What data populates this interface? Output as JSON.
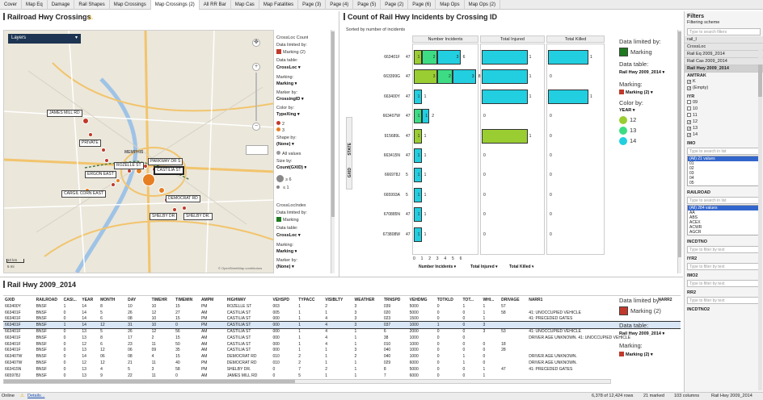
{
  "tabs": [
    "Cover",
    "Map Eq",
    "Damage",
    "Rail Shapes",
    "Map Crossings",
    "Map Crossings (2)",
    "All RR Bar",
    "Map Cas",
    "Map Fatalities",
    "Page (3)",
    "Page (4)",
    "Page (5)",
    "Page (2)",
    "Page (6)",
    "Map Ops",
    "Map Ops (2)"
  ],
  "active_tab": 5,
  "map_panel": {
    "title": "Railroad Hwy Crossings",
    "layers_label": "Layers",
    "scale_km": "10 km",
    "scale_mi": "5 mi",
    "credit": "© OpenStreetMap contributors",
    "labels": [
      "JAMES MILL RD",
      "PRIVATE",
      "ROZELLE ST",
      "PARKWAY DR S",
      "CASTILIA ST",
      "ERGON EAST",
      "CARGIL CORN EAST",
      "DEMOCRAT RD",
      "SHELBY DR",
      "SHELBY DR."
    ],
    "city": "MEMPHIS",
    "legend": {
      "section_title": "CrossLoc Count",
      "data_limited_label": "Data limited by:",
      "data_limited_value": "Marking (2)",
      "data_table_label": "Data table:",
      "data_table_value": "CrossLoc",
      "marking_label": "Marking:",
      "marking_value": "Marking",
      "marker_label": "Marker by:",
      "marker_value": "CrossingID",
      "color_label": "Color by:",
      "color_value": "TypeXing",
      "color_items": [
        "2",
        "3"
      ],
      "shape_label": "Shape by:",
      "shape_value": "(None)",
      "shape_item": "All values",
      "size_label": "Size by:",
      "size_value": "Count(GXID)",
      "size_items": [
        "≥ 6",
        "≤ 1"
      ],
      "section2_title": "CrossLocIndex",
      "data_limited_label2": "Data limited by:",
      "data_limited_value2": "Marking",
      "data_table_label2": "Data table:",
      "data_table_value2": "CrossLoc",
      "marking_label2": "Marking:",
      "marking_value2": "Marking",
      "marker_label2": "Marker by:",
      "marker_value2": "(None)"
    }
  },
  "chart_panel": {
    "title": "Count of Rail Hwy Incidents by Crossing ID",
    "subtitle": "Sorted by number of incidents",
    "y_axis_label": "GXID",
    "state_label": "STATE",
    "legend": {
      "data_limited_label": "Data limited by:",
      "data_limited_value": "Marking",
      "data_table_label": "Data table:",
      "data_table_value": "Rail Hwy 2009_2014",
      "marking_label": "Marking:",
      "marking_value": "Marking (2)",
      "color_label": "Color by:",
      "color_value": "YEAR",
      "color_items": [
        {
          "label": "12",
          "color": "#9acd32"
        },
        {
          "label": "13",
          "color": "#3ddc84"
        },
        {
          "label": "14",
          "color": "#22cfe0"
        }
      ]
    },
    "axis_selectors": [
      "Number Incidents",
      "Total Injured",
      "Total Killed"
    ]
  },
  "chart_data": {
    "type": "bar",
    "title": "Count of Rail Hwy Incidents by Crossing ID",
    "subtitle": "Sorted by number of incidents",
    "categories": [
      "663401F",
      "663399G",
      "663400Y",
      "663407W",
      "915689L",
      "663415N",
      "666978J",
      "665993A",
      "670885N",
      "673808W"
    ],
    "state": [
      "47",
      "47",
      "47",
      "47",
      "47",
      "47",
      "5",
      "5",
      "47",
      "47"
    ],
    "panels": [
      "Number Incidents",
      "Total Injured",
      "Total Killed"
    ],
    "series": [
      {
        "name": "Number Incidents",
        "values": [
          6,
          8,
          1,
          2,
          1,
          1,
          1,
          1,
          1,
          1
        ]
      },
      {
        "name": "Total Injured",
        "values": [
          1,
          1,
          1,
          0,
          1,
          0,
          0,
          0,
          0,
          0
        ]
      },
      {
        "name": "Total Killed",
        "values": [
          1,
          0,
          1,
          0,
          0,
          0,
          0,
          0,
          0,
          0
        ]
      }
    ],
    "incident_year_breakdown": [
      [
        1,
        2,
        3
      ],
      [
        3,
        2,
        3
      ],
      [
        1
      ],
      [
        1,
        1
      ],
      [
        1
      ],
      [
        1
      ],
      [
        1
      ],
      [
        1
      ],
      [
        1
      ],
      [
        1
      ]
    ],
    "x_ticks": [
      "0",
      "1",
      "2",
      "3",
      "4",
      "5",
      "6"
    ]
  },
  "table_panel": {
    "title": "Rail Hwy 2009_2014",
    "columns": [
      "GXID",
      "RAILROAD",
      "CASI...",
      "YEAR",
      "MONTH",
      "DAY",
      "TIMEHR",
      "TIMEMIN",
      "AMPM",
      "HIGHWAY",
      "VEHSPD",
      "TYPACC",
      "VISIBLTY",
      "WEATHER",
      "TRNSPD",
      "VEHDMG",
      "TOTKLD",
      "TOT...",
      "WHI...",
      "DRIVAGE",
      "NARR1",
      "NARR2"
    ],
    "rows": [
      [
        "663400Y",
        "BNSF",
        "1",
        "14",
        "8",
        "10",
        "10",
        "15",
        "PM",
        "ROZELLE ST",
        "003",
        "1",
        "2",
        "3",
        "039",
        "5000",
        "0",
        "1",
        "1",
        "57",
        "",
        ""
      ],
      [
        "663401F",
        "BNSF",
        "0",
        "14",
        "5",
        "26",
        "12",
        "27",
        "AM",
        "CASTILIA ST",
        "005",
        "1",
        "1",
        "3",
        "020",
        "5000",
        "0",
        "0",
        "1",
        "58",
        "41: UNOCCUPIED VEHICLE",
        ""
      ],
      [
        "663401F",
        "BNSF",
        "0",
        "14",
        "6",
        "08",
        "10",
        "15",
        "PM",
        "CASTILIA ST",
        "000",
        "1",
        "4",
        "3",
        "023",
        "1500",
        "0",
        "0",
        "1",
        "",
        "41: PRECEDED GATES",
        ""
      ],
      [
        "663401F",
        "BNSF",
        "1",
        "14",
        "12",
        "31",
        "10",
        "0",
        "PM",
        "CASTILIA ST",
        "000",
        "1",
        "4",
        "3",
        "037",
        "1000",
        "1",
        "0",
        "3",
        "",
        "",
        ""
      ],
      [
        "663401F",
        "BNSF",
        "0",
        "13",
        "5",
        "26",
        "12",
        "56",
        "AM",
        "CASTILIA ST",
        "000",
        "1",
        "4",
        "1",
        "6",
        "2000",
        "0",
        "0",
        "3",
        "53",
        "41: UNOCCUPIED VEHICLE",
        ""
      ],
      [
        "663401F",
        "BNSF",
        "0",
        "13",
        "8",
        "17",
        "2",
        "15",
        "AM",
        "CASTILIA ST",
        "000",
        "1",
        "4",
        "1",
        "38",
        "1000",
        "0",
        "0",
        "",
        "",
        "DRIVER AGE UNKNOWN. 41: UNOCCUPIED VEHICLE",
        ""
      ],
      [
        "663401F",
        "BNSF",
        "0",
        "12",
        "6",
        "23",
        "11",
        "50",
        "AM",
        "CASTILIA ST",
        "000",
        "1",
        "4",
        "1",
        "010",
        "1000",
        "0",
        "0",
        "0",
        "18",
        "",
        ""
      ],
      [
        "663401F",
        "BNSF",
        "0",
        "13",
        "12",
        "06",
        "09",
        "35",
        "AM",
        "CASTILIA ST",
        "000",
        "1",
        "1",
        "3",
        "040",
        "1000",
        "0",
        "0",
        "0",
        "28",
        "",
        ""
      ],
      [
        "663407W",
        "BNSF",
        "0",
        "14",
        "06",
        "08",
        "4",
        "15",
        "AM",
        "DEMOCRAT RD",
        "010",
        "2",
        "1",
        "2",
        "040",
        "1000",
        "0",
        "1",
        "0",
        "",
        "DRIVER AGE UNKNOWN.",
        ""
      ],
      [
        "663407W",
        "BNSF",
        "0",
        "12",
        "12",
        "21",
        "11",
        "40",
        "PM",
        "DEMOCRAT RD",
        "010",
        "2",
        "1",
        "1",
        "029",
        "6000",
        "0",
        "1",
        "0",
        "",
        "DRIVER AGE UNKNOWN.",
        ""
      ],
      [
        "663415N",
        "BNSF",
        "0",
        "13",
        "4",
        "5",
        "3",
        "58",
        "PM",
        "SHELBY DR.",
        "0",
        "7",
        "2",
        "1",
        "8",
        "5000",
        "0",
        "0",
        "1",
        "47",
        "41: PRECEDED GATES",
        ""
      ],
      [
        "665978J",
        "BNSF",
        "0",
        "13",
        "9",
        "22",
        "11",
        "0",
        "AM",
        "JAMES MILL RD",
        "0",
        "5",
        "1",
        "1",
        "7",
        "6000",
        "0",
        "0",
        "1",
        "",
        "",
        ""
      ]
    ],
    "highlight_row": 3,
    "legend": {
      "data_limited_label": "Data limited by:",
      "data_limited_value": "Marking (2)",
      "data_table_label": "Data table:",
      "data_table_value": "Rail Hwy 2009_2014",
      "marking_label": "Marking:",
      "marking_value": "Marking (2)"
    }
  },
  "filters": {
    "title": "Filters",
    "scheme_label": "Filtering scheme",
    "search_placeholder": "Type to search filters",
    "tables": [
      "rail_I",
      "CrossLoc",
      "Rail Eq 2009_2014",
      "Rail Cas 2009_2014",
      "Rail Hwy 2009_2014"
    ],
    "amtrak_label": "AMTRAK",
    "amtrak_items": [
      "K",
      "(Empty)"
    ],
    "iyr_label": "IYR",
    "iyr_items": [
      "09",
      "10",
      "11",
      "12",
      "13",
      "14"
    ],
    "iyr_checked": [
      false,
      false,
      false,
      true,
      true,
      true
    ],
    "imo_label": "IMO",
    "imo_search": "Type to search in list",
    "imo_items": [
      "(All) 21 values",
      "01",
      "02",
      "03",
      "04",
      "05",
      "06"
    ],
    "railroad_label": "RAILROAD",
    "railroad_search": "Type to search in list",
    "railroad_items": [
      "(All) 284 values",
      "AA",
      "ABS",
      "ACEX",
      "ACWR",
      "AGCR",
      "AGR"
    ],
    "incdtno_label": "INCDTNO",
    "filter_placeholder": "Type to filter by text",
    "iyr2_label": "IYR2",
    "imo2_label": "IMO2",
    "rr2_label": "RR2",
    "incdtno2_label": "INCDTNO2"
  },
  "status": {
    "online": "Online",
    "details": "Details...",
    "rows": "6,378 of 12,424 rows",
    "marked": "21 marked",
    "columns": "103 columns",
    "table": "Rail Hwy 2009_2014"
  }
}
